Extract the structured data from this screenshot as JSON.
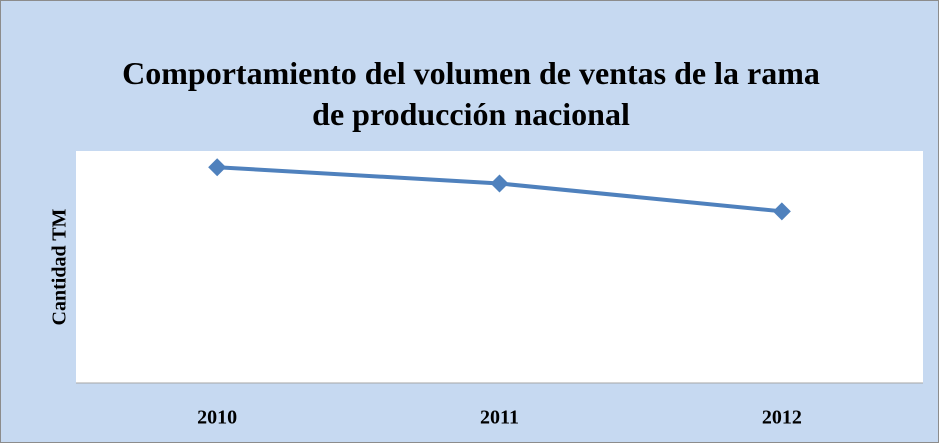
{
  "chart_data": {
    "type": "line",
    "title": "Comportamiento del volumen de ventas de la rama de producción nacional",
    "y_label": "Cantidad TM",
    "categories": [
      "2010",
      "2011",
      "2012"
    ],
    "series": [
      {
        "name": "Cantidad TM",
        "color": "#4f81bd",
        "values": [
          93,
          86,
          74
        ]
      }
    ],
    "ylim": [
      0,
      100
    ]
  }
}
